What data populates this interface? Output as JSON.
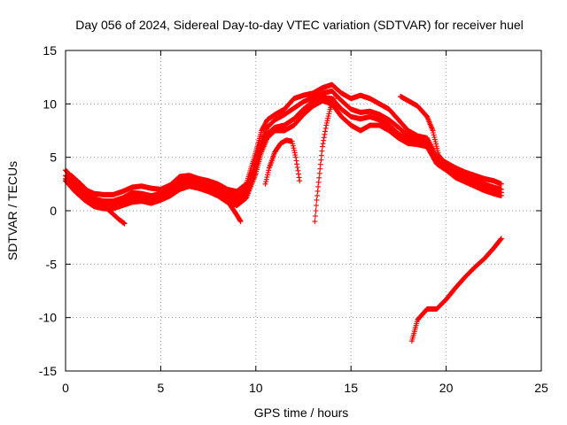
{
  "chart_data": {
    "type": "scatter",
    "title": "Day 056 of 2024, Sidereal Day-to-day VTEC variation (SDTVAR) for receiver huel",
    "xlabel": "GPS time / hours",
    "ylabel": "SDTVAR / TECUs",
    "xlim": [
      0,
      25
    ],
    "ylim": [
      -15,
      15
    ],
    "xticks": [
      0,
      5,
      10,
      15,
      20,
      25
    ],
    "yticks": [
      -15,
      -10,
      -5,
      0,
      5,
      10,
      15
    ],
    "xtick_labels": [
      "0",
      "5",
      "10",
      "15",
      "20",
      "25"
    ],
    "ytick_labels": [
      "-15",
      "-10",
      "-5",
      "0",
      "5",
      "10",
      "15"
    ],
    "grid": true,
    "marker": "plus",
    "color": "#ff0000",
    "series": [
      {
        "name": "track-1",
        "points": [
          [
            0,
            3.8
          ],
          [
            0.5,
            2.8
          ],
          [
            1,
            2.0
          ],
          [
            1.5,
            1.6
          ],
          [
            2,
            1.5
          ],
          [
            2.5,
            1.5
          ],
          [
            3,
            1.8
          ],
          [
            3.5,
            2.2
          ],
          [
            4,
            2.3
          ],
          [
            4.5,
            2.1
          ],
          [
            5,
            2.0
          ],
          [
            5.5,
            2.4
          ],
          [
            6,
            3.2
          ],
          [
            6.5,
            3.3
          ],
          [
            7,
            3.0
          ],
          [
            7.5,
            2.8
          ],
          [
            8,
            2.5
          ],
          [
            8.5,
            2.0
          ],
          [
            9,
            1.8
          ],
          [
            9.5,
            2.5
          ],
          [
            10,
            5.5
          ],
          [
            10.3,
            7.5
          ],
          [
            10.6,
            8.5
          ],
          [
            11,
            9.0
          ],
          [
            11.5,
            9.5
          ],
          [
            12,
            10.5
          ],
          [
            12.5,
            10.8
          ],
          [
            13,
            11.0
          ],
          [
            13.5,
            11.5
          ],
          [
            14,
            11.8
          ],
          [
            14.5,
            11.0
          ],
          [
            15,
            10.5
          ],
          [
            15.5,
            10.8
          ],
          [
            16,
            10.5
          ],
          [
            16.5,
            10.0
          ],
          [
            17,
            9.5
          ],
          [
            17.5,
            8.5
          ],
          [
            18,
            7.5
          ],
          [
            18.5,
            7.0
          ],
          [
            19,
            6.8
          ],
          [
            19.5,
            5.0
          ],
          [
            20,
            4.5
          ],
          [
            20.5,
            4.0
          ],
          [
            21,
            3.6
          ],
          [
            21.5,
            3.3
          ],
          [
            22,
            3.0
          ],
          [
            22.5,
            2.8
          ],
          [
            22.9,
            2.5
          ]
        ]
      },
      {
        "name": "track-2",
        "points": [
          [
            0,
            3.3
          ],
          [
            0.5,
            2.5
          ],
          [
            1,
            1.6
          ],
          [
            1.5,
            1.1
          ],
          [
            2,
            0.9
          ],
          [
            2.5,
            0.9
          ],
          [
            3,
            1.2
          ],
          [
            3.5,
            1.7
          ],
          [
            4,
            1.6
          ],
          [
            4.5,
            1.4
          ],
          [
            5,
            1.6
          ],
          [
            5.5,
            2.0
          ],
          [
            6,
            2.8
          ],
          [
            6.5,
            3.0
          ],
          [
            7,
            2.7
          ],
          [
            7.5,
            2.4
          ],
          [
            8,
            2.1
          ],
          [
            8.5,
            1.6
          ],
          [
            9,
            1.3
          ],
          [
            9.5,
            2.0
          ],
          [
            10,
            4.5
          ],
          [
            10.3,
            6.5
          ],
          [
            10.6,
            7.8
          ],
          [
            11,
            8.5
          ],
          [
            11.5,
            9.0
          ],
          [
            12,
            9.6
          ],
          [
            12.5,
            10.2
          ],
          [
            13,
            10.6
          ],
          [
            13.5,
            11.0
          ],
          [
            14,
            11.2
          ],
          [
            14.5,
            10.3
          ],
          [
            15,
            9.5
          ],
          [
            15.5,
            9.2
          ],
          [
            16,
            9.3
          ],
          [
            16.5,
            9.0
          ],
          [
            17,
            8.5
          ],
          [
            17.5,
            7.8
          ],
          [
            18,
            7.0
          ],
          [
            18.5,
            6.8
          ],
          [
            19,
            6.5
          ],
          [
            19.5,
            4.8
          ],
          [
            20,
            4.2
          ],
          [
            20.5,
            3.7
          ],
          [
            21,
            3.3
          ],
          [
            21.5,
            2.9
          ],
          [
            22,
            2.5
          ],
          [
            22.5,
            2.2
          ],
          [
            22.9,
            2.0
          ]
        ]
      },
      {
        "name": "track-3",
        "points": [
          [
            0,
            3.0
          ],
          [
            0.5,
            2.2
          ],
          [
            1,
            1.3
          ],
          [
            1.5,
            0.8
          ],
          [
            2,
            0.5
          ],
          [
            2.5,
            0.5
          ],
          [
            3,
            0.8
          ],
          [
            3.5,
            1.2
          ],
          [
            4,
            1.3
          ],
          [
            4.5,
            1.1
          ],
          [
            5,
            1.3
          ],
          [
            5.5,
            1.7
          ],
          [
            6,
            2.4
          ],
          [
            6.5,
            2.6
          ],
          [
            7,
            2.4
          ],
          [
            7.5,
            2.1
          ],
          [
            8,
            1.8
          ],
          [
            8.5,
            1.2
          ],
          [
            9,
            0.9
          ],
          [
            9.5,
            1.5
          ],
          [
            10,
            4.0
          ],
          [
            10.3,
            6.0
          ],
          [
            10.6,
            7.2
          ],
          [
            11,
            7.8
          ],
          [
            11.5,
            8.0
          ],
          [
            12,
            8.6
          ],
          [
            12.5,
            9.5
          ],
          [
            13,
            10.2
          ],
          [
            13.5,
            10.6
          ],
          [
            14,
            10.5
          ],
          [
            14.5,
            9.5
          ],
          [
            15,
            8.8
          ],
          [
            15.5,
            8.6
          ],
          [
            16,
            8.8
          ],
          [
            16.5,
            8.5
          ],
          [
            17,
            8.0
          ],
          [
            17.5,
            7.2
          ],
          [
            18,
            6.6
          ],
          [
            18.5,
            6.5
          ],
          [
            19,
            6.2
          ],
          [
            19.5,
            4.6
          ],
          [
            20,
            4.0
          ],
          [
            20.5,
            3.4
          ],
          [
            21,
            3.0
          ],
          [
            21.5,
            2.6
          ],
          [
            22,
            2.2
          ],
          [
            22.5,
            1.9
          ],
          [
            22.9,
            1.7
          ]
        ]
      },
      {
        "name": "track-4",
        "points": [
          [
            0,
            2.8
          ],
          [
            0.5,
            1.8
          ],
          [
            1,
            1.0
          ],
          [
            1.5,
            0.4
          ],
          [
            2,
            0.2
          ],
          [
            2.5,
            0.2
          ],
          [
            3,
            0.5
          ],
          [
            3.5,
            0.8
          ],
          [
            4,
            0.9
          ],
          [
            4.5,
            0.7
          ],
          [
            5,
            1.0
          ],
          [
            5.5,
            1.4
          ],
          [
            6,
            2.0
          ],
          [
            6.5,
            2.3
          ],
          [
            7,
            2.1
          ],
          [
            7.5,
            1.8
          ],
          [
            8,
            1.4
          ],
          [
            8.5,
            0.8
          ],
          [
            9,
            0.5
          ],
          [
            9.5,
            1.2
          ],
          [
            10,
            3.5
          ],
          [
            10.3,
            5.5
          ],
          [
            10.6,
            6.8
          ],
          [
            11,
            7.5
          ],
          [
            11.5,
            7.5
          ],
          [
            12,
            8.0
          ],
          [
            12.5,
            9.0
          ],
          [
            13,
            9.8
          ],
          [
            13.5,
            10.3
          ],
          [
            14,
            10.0
          ],
          [
            14.5,
            8.8
          ],
          [
            15,
            8.0
          ],
          [
            15.5,
            7.5
          ],
          [
            16,
            8.0
          ],
          [
            16.5,
            8.0
          ],
          [
            17,
            7.5
          ],
          [
            17.5,
            6.8
          ],
          [
            18,
            6.3
          ],
          [
            18.5,
            6.2
          ],
          [
            19,
            6.0
          ],
          [
            19.5,
            4.4
          ],
          [
            20,
            3.8
          ],
          [
            20.5,
            3.1
          ],
          [
            21,
            2.7
          ],
          [
            21.5,
            2.3
          ],
          [
            22,
            1.9
          ],
          [
            22.5,
            1.6
          ],
          [
            22.9,
            1.4
          ]
        ]
      },
      {
        "name": "track-5",
        "points": [
          [
            0.3,
            3.3
          ],
          [
            0.8,
            2.5
          ],
          [
            1.3,
            1.6
          ],
          [
            1.8,
            0.8
          ],
          [
            2.3,
            0.0
          ],
          [
            2.8,
            -0.8
          ],
          [
            3.1,
            -1.2
          ]
        ]
      },
      {
        "name": "track-6",
        "points": [
          [
            7.5,
            2.6
          ],
          [
            8,
            2.0
          ],
          [
            8.4,
            1.2
          ],
          [
            8.7,
            0.4
          ],
          [
            9,
            -0.4
          ],
          [
            9.2,
            -1.0
          ]
        ]
      },
      {
        "name": "track-7",
        "points": [
          [
            10.5,
            2.5
          ],
          [
            10.7,
            4.0
          ],
          [
            11,
            5.5
          ],
          [
            11.3,
            6.3
          ],
          [
            11.6,
            6.6
          ],
          [
            11.9,
            6.5
          ],
          [
            12.1,
            5.0
          ],
          [
            12.3,
            2.8
          ]
        ]
      },
      {
        "name": "track-8",
        "points": [
          [
            13.1,
            -1.0
          ],
          [
            13.2,
            1.0
          ],
          [
            13.35,
            3.5
          ],
          [
            13.5,
            6.0
          ],
          [
            13.7,
            8.0
          ],
          [
            13.9,
            9.5
          ],
          [
            14.1,
            10.5
          ]
        ]
      },
      {
        "name": "track-9",
        "points": [
          [
            18.2,
            -12.2
          ],
          [
            18.5,
            -10.2
          ],
          [
            19,
            -9.2
          ],
          [
            19.5,
            -9.2
          ],
          [
            20,
            -8.3
          ],
          [
            20.5,
            -7.2
          ],
          [
            21,
            -6.2
          ],
          [
            21.5,
            -5.3
          ],
          [
            22,
            -4.5
          ],
          [
            22.5,
            -3.5
          ],
          [
            22.9,
            -2.6
          ]
        ]
      },
      {
        "name": "track-10",
        "points": [
          [
            17.6,
            10.7
          ],
          [
            18,
            10.3
          ],
          [
            18.5,
            9.8
          ],
          [
            19,
            8.8
          ],
          [
            19.3,
            7.5
          ],
          [
            19.6,
            5.2
          ],
          [
            20,
            4.3
          ]
        ]
      }
    ]
  }
}
